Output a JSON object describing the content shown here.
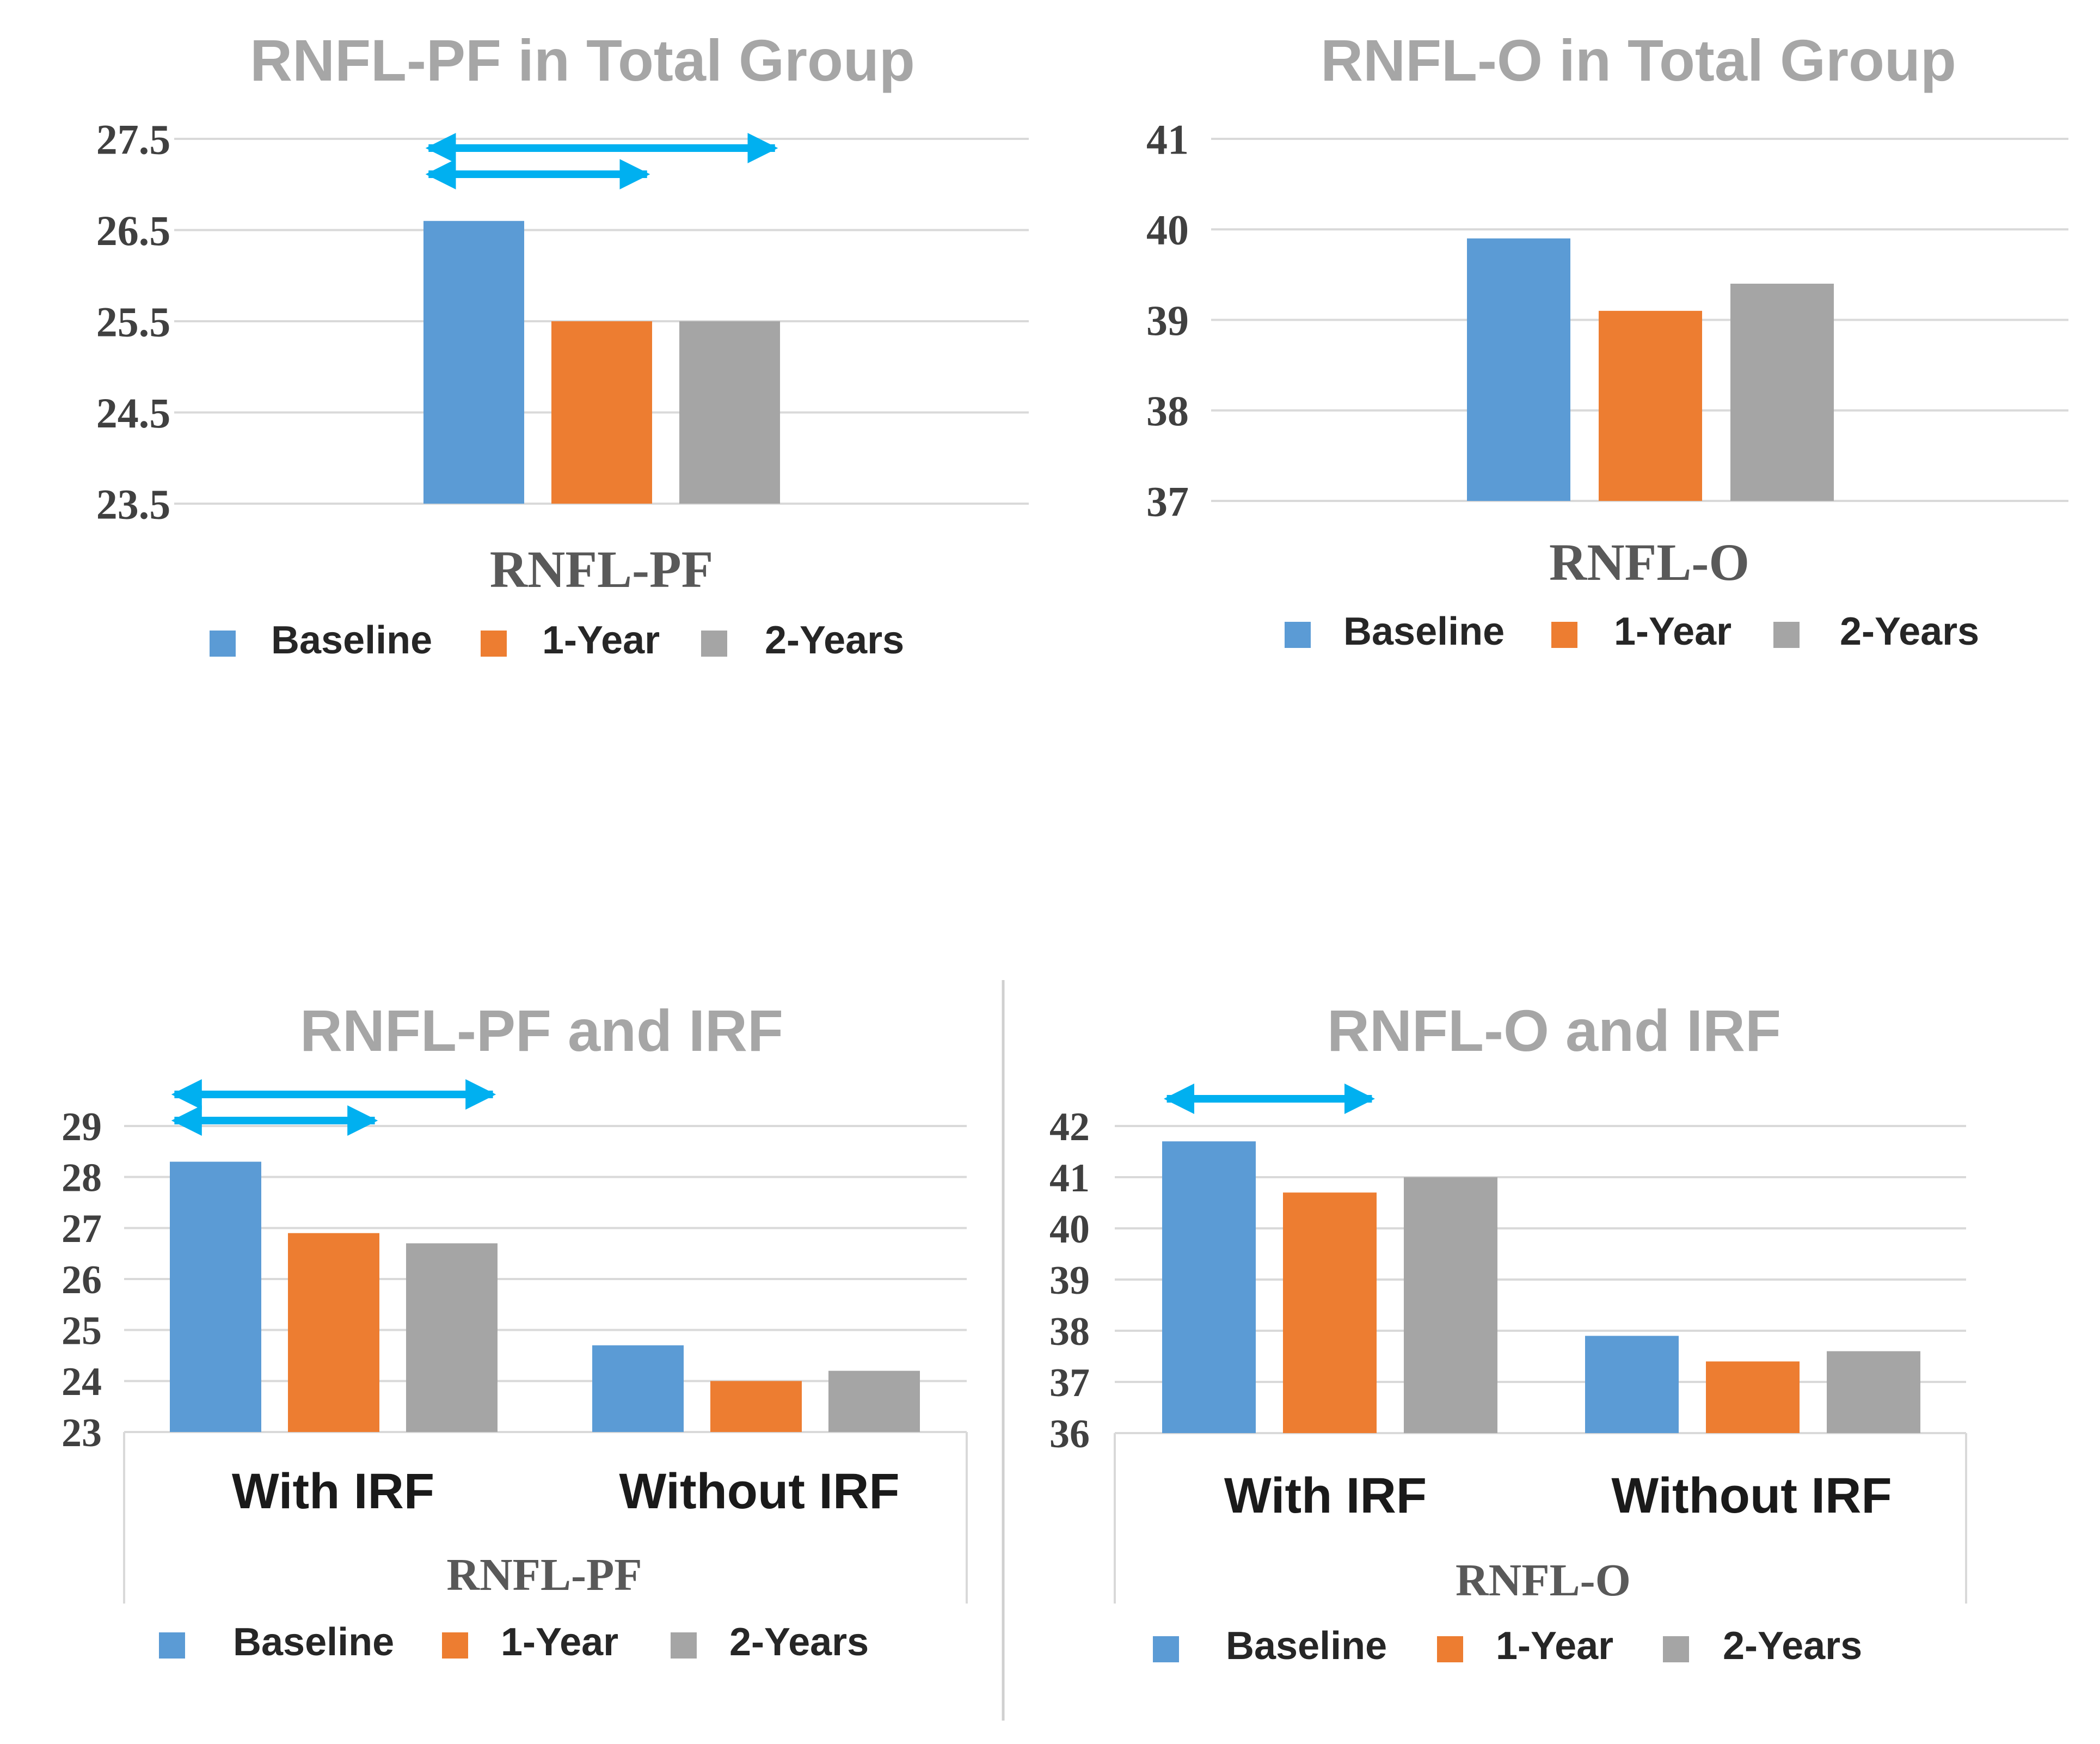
{
  "colors": {
    "baseline": "#5b9bd5",
    "one_year": "#ed7d31",
    "two_years": "#a5a5a5",
    "arrow": "#00b0f0",
    "grid": "#d9d9d9",
    "title": "#a6a6a6"
  },
  "chart_data": [
    {
      "type": "bar",
      "title": "RNFL-PF in Total Group",
      "xlabel": "RNFL-PF",
      "categories": [
        ""
      ],
      "ylim": [
        23.5,
        27.5
      ],
      "yticks": [
        "27.5",
        "26.5",
        "25.5",
        "24.5",
        "23.5"
      ],
      "series": [
        {
          "name": "Baseline",
          "values": [
            26.6
          ]
        },
        {
          "name": "1-Year",
          "values": [
            25.5
          ]
        },
        {
          "name": "2-Years",
          "values": [
            25.5
          ]
        }
      ],
      "legend": [
        "Baseline",
        "1-Year",
        "2-Years"
      ],
      "annotations": [
        {
          "type": "double-arrow",
          "from": "Baseline",
          "to": "2-Years",
          "category": 0
        },
        {
          "type": "double-arrow",
          "from": "Baseline",
          "to": "1-Year",
          "category": 0
        }
      ]
    },
    {
      "type": "bar",
      "title": "RNFL-O in Total Group",
      "xlabel": "RNFL-O",
      "categories": [
        ""
      ],
      "ylim": [
        37,
        41
      ],
      "yticks": [
        "41",
        "40",
        "39",
        "38",
        "37"
      ],
      "series": [
        {
          "name": "Baseline",
          "values": [
            39.9
          ]
        },
        {
          "name": "1-Year",
          "values": [
            39.1
          ]
        },
        {
          "name": "2-Years",
          "values": [
            39.4
          ]
        }
      ],
      "legend": [
        "Baseline",
        "1-Year",
        "2-Years"
      ],
      "annotations": []
    },
    {
      "type": "bar",
      "title": "RNFL-PF and IRF",
      "xlabel": "RNFL-PF",
      "categories": [
        "With IRF",
        "Without IRF"
      ],
      "ylim": [
        23,
        29
      ],
      "yticks": [
        "29",
        "28",
        "27",
        "26",
        "25",
        "24",
        "23"
      ],
      "series": [
        {
          "name": "Baseline",
          "values": [
            28.3,
            24.7
          ]
        },
        {
          "name": "1-Year",
          "values": [
            26.9,
            24.0
          ]
        },
        {
          "name": "2-Years",
          "values": [
            26.7,
            24.2
          ]
        }
      ],
      "legend": [
        "Baseline",
        "1-Year",
        "2-Years"
      ],
      "annotations": [
        {
          "type": "double-arrow",
          "from": "Baseline",
          "to": "2-Years",
          "category": 0
        },
        {
          "type": "double-arrow",
          "from": "Baseline",
          "to": "1-Year",
          "category": 0
        }
      ]
    },
    {
      "type": "bar",
      "title": "RNFL-O and IRF",
      "xlabel": "RNFL-O",
      "categories": [
        "With IRF",
        "Without IRF"
      ],
      "ylim": [
        36,
        42
      ],
      "yticks": [
        "42",
        "41",
        "40",
        "39",
        "38",
        "37",
        "36"
      ],
      "series": [
        {
          "name": "Baseline",
          "values": [
            41.7,
            37.9
          ]
        },
        {
          "name": "1-Year",
          "values": [
            40.7,
            37.4
          ]
        },
        {
          "name": "2-Years",
          "values": [
            41.0,
            37.6
          ]
        }
      ],
      "legend": [
        "Baseline",
        "1-Year",
        "2-Years"
      ],
      "annotations": [
        {
          "type": "double-arrow",
          "from": "Baseline",
          "to": "1-Year",
          "category": 0
        }
      ]
    }
  ]
}
